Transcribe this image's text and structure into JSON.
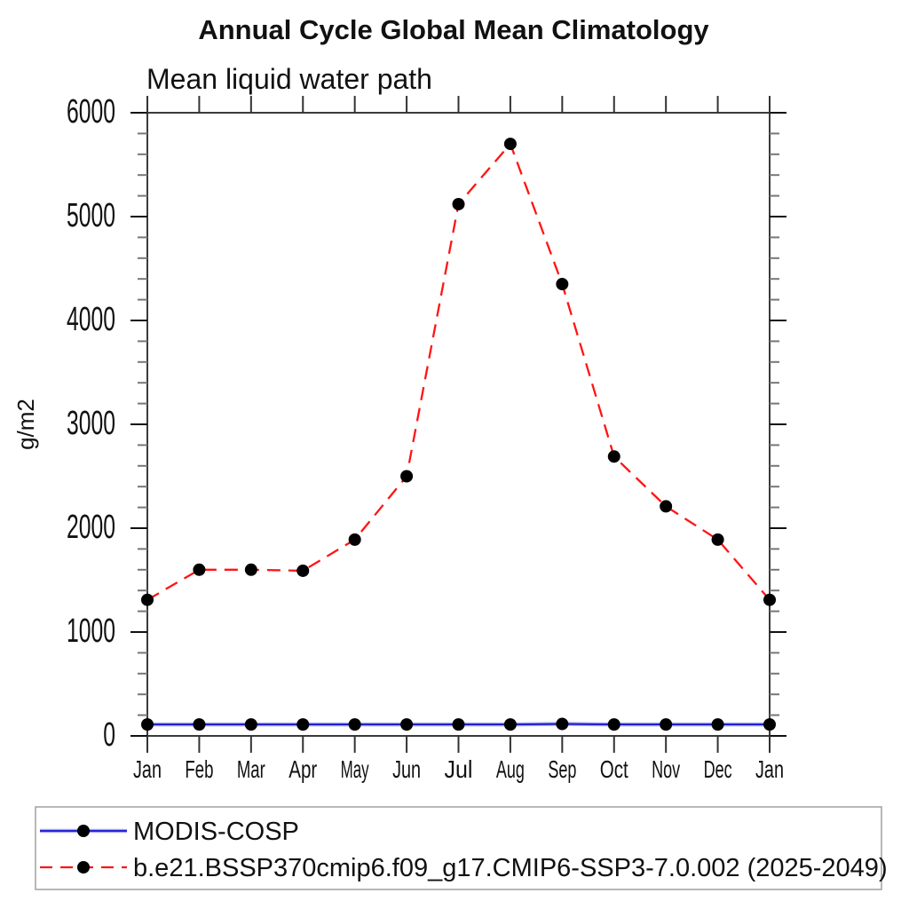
{
  "page": {
    "background": "#ffffff"
  },
  "chart_data": {
    "type": "line",
    "title": "Annual Cycle Global Mean Climatology",
    "subtitle": "Mean liquid water path",
    "xlabel": "",
    "ylabel": "g/m2",
    "categories": [
      "Jan",
      "Feb",
      "Mar",
      "Apr",
      "May",
      "Jun",
      "Jul",
      "Aug",
      "Sep",
      "Oct",
      "Nov",
      "Dec",
      "Jan"
    ],
    "ylim": [
      0,
      6000
    ],
    "y_major_step": 1000,
    "y_minor_step": 200,
    "grid": false,
    "legend_position": "bottom-left-box",
    "series": [
      {
        "name": "MODIS-COSP",
        "color": "#1111cc",
        "halo_color": "#a9aaf0",
        "line_style": "solid",
        "marker": "filled-circle",
        "marker_color": "#000000",
        "values": [
          110,
          110,
          110,
          110,
          110,
          110,
          110,
          110,
          115,
          110,
          110,
          110,
          110
        ]
      },
      {
        "name": "b.e21.BSSP370cmip6.f09_g17.CMIP6-SSP3-7.0.002 (2025-2049)",
        "color": "#ff1414",
        "line_style": "dashed",
        "marker": "filled-circle",
        "marker_color": "#000000",
        "values": [
          1310,
          1600,
          1600,
          1590,
          1890,
          2500,
          5120,
          5700,
          4350,
          2690,
          2210,
          1890,
          1310
        ]
      }
    ]
  },
  "style_colors": {
    "frame": "#3a3a3a",
    "major_tick": "#111111",
    "minor_tick": "#777777",
    "month_tick": "#333333",
    "legend_border": "#a0a0a0",
    "text": "#111111"
  }
}
